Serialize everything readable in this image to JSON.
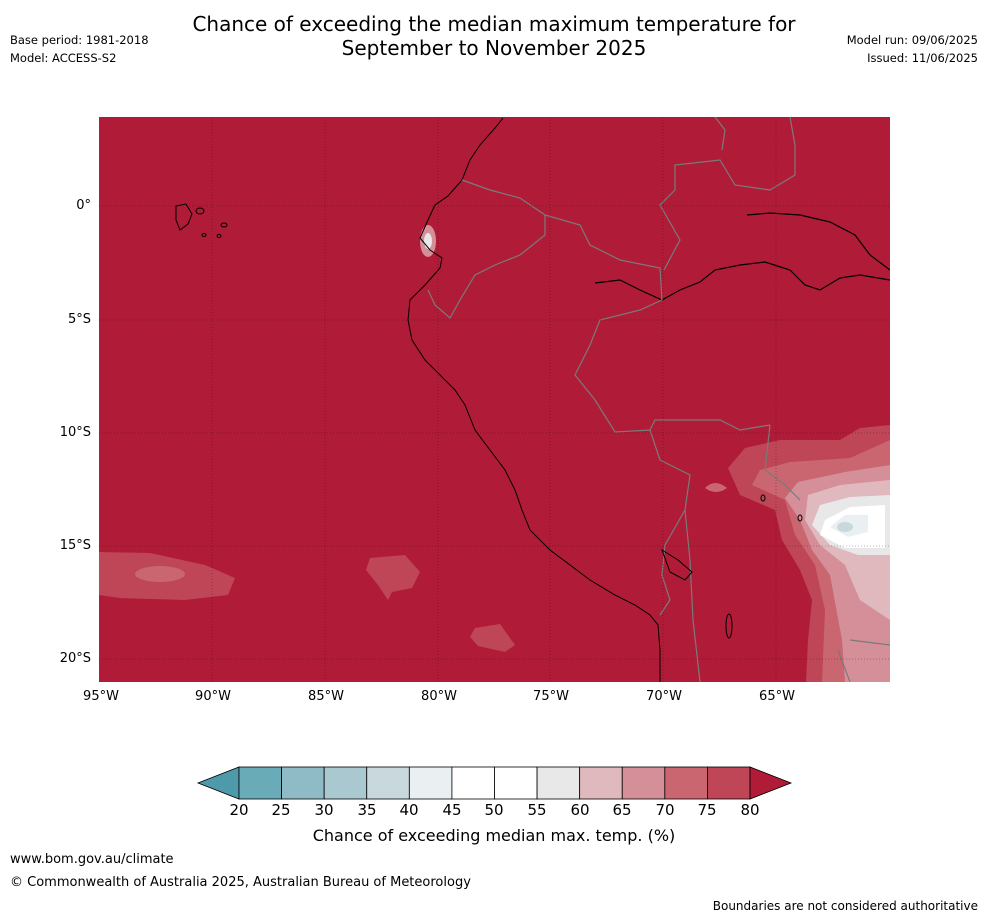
{
  "header": {
    "title_line1": "Chance of exceeding the median maximum temperature for",
    "title_line2": "September to November 2025",
    "base_period": "Base period: 1981-2018",
    "model": "Model: ACCESS-S2",
    "model_run": "Model run: 09/06/2025",
    "issued": "Issued: 11/06/2025"
  },
  "map": {
    "region": "Western South America",
    "background_color": "#b01c37",
    "lat_ticks": [
      "0°",
      "5°S",
      "10°S",
      "15°S",
      "20°S"
    ],
    "lon_ticks": [
      "95°W",
      "90°W",
      "85°W",
      "80°W",
      "75°W",
      "70°W",
      "65°W"
    ],
    "grid": true
  },
  "colorbar": {
    "ticks": [
      "20",
      "25",
      "30",
      "35",
      "40",
      "45",
      "50",
      "55",
      "60",
      "65",
      "70",
      "75",
      "80"
    ],
    "colors": [
      "#4e9aaa",
      "#6aabb8",
      "#8fbbc6",
      "#aac8cf",
      "#c8d8dd",
      "#eaeff1",
      "#ffffff",
      "#ffffff",
      "#e8e8e8",
      "#e0b9bf",
      "#d58f99",
      "#c96670",
      "#be4656",
      "#b01c37"
    ],
    "label": "Chance of exceeding median max. temp. (%)"
  },
  "footer": {
    "website": "www.bom.gov.au/climate",
    "copyright": "© Commonwealth of Australia 2025, Australian Bureau of Meteorology",
    "disclaimer": "Boundaries are not considered authoritative"
  }
}
